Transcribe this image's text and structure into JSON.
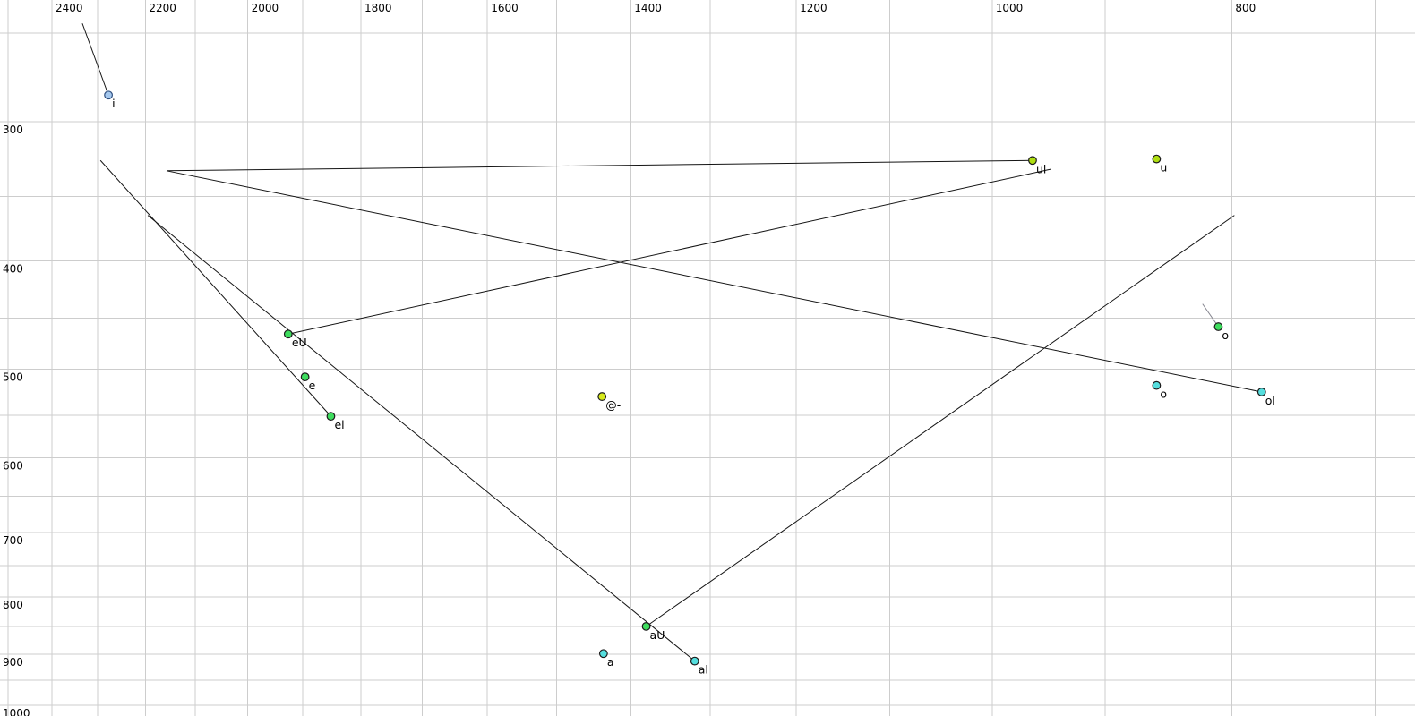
{
  "chart_data": {
    "type": "scatter",
    "title": "",
    "description": "Vowel formant plot: F2 on top horizontal axis (Hz, reversed, log scale), F1 on left vertical axis (Hz, increasing downward, log scale). Labeled vowel tokens with diphthong glide trajectory lines.",
    "x_axis": {
      "unit": "Hz",
      "scale": "log",
      "reversed": true,
      "labeled_ticks": [
        2400,
        2200,
        2000,
        1800,
        1600,
        1400,
        1200,
        1000,
        800
      ],
      "gridline_values": [
        2500,
        2400,
        2300,
        2200,
        2100,
        2000,
        1900,
        1800,
        1700,
        1600,
        1500,
        1400,
        1300,
        1200,
        1100,
        1000,
        900,
        800,
        700
      ]
    },
    "y_axis": {
      "unit": "Hz",
      "scale": "log",
      "labeled_ticks": [
        300,
        400,
        500,
        600,
        700,
        800,
        900,
        1000
      ],
      "gridline_values": [
        250,
        300,
        350,
        400,
        450,
        500,
        550,
        600,
        650,
        700,
        750,
        800,
        850,
        900,
        950,
        1000
      ]
    },
    "palette": {
      "blue": {
        "fill": "#a5c8ee",
        "stroke": "#2f4f7f"
      },
      "green": {
        "fill": "#3edd5e",
        "stroke": "#1a1a1a"
      },
      "cyan": {
        "fill": "#55dede",
        "stroke": "#1a1a1a"
      },
      "chartreuse": {
        "fill": "#aede11",
        "stroke": "#1a1a1a"
      },
      "yellow": {
        "fill": "#d7ea1c",
        "stroke": "#1a1a1a"
      }
    },
    "line_colors": {
      "default": "#141414",
      "grey": "#85858f"
    },
    "label_colors": {
      "default": "#000000",
      "grey": "#8b8b99"
    },
    "points": [
      {
        "id": "i",
        "label": "i",
        "f2": 2277,
        "f1": 284,
        "color": "blue",
        "glide": {
          "f2": 2333,
          "f1": 245
        }
      },
      {
        "id": "ul",
        "label": "ul",
        "f2": 963,
        "f1": 325,
        "color": "chartreuse",
        "glide": {
          "f2": 2157,
          "f1": 332
        }
      },
      {
        "id": "u",
        "label": "u",
        "f2": 858,
        "f1": 324,
        "color": "chartreuse"
      },
      {
        "id": "eU",
        "label": "eU",
        "f2": 1926,
        "f1": 465,
        "color": "green",
        "glide": {
          "f2": 947,
          "f1": 331
        }
      },
      {
        "id": "e",
        "label": "e",
        "f2": 1896,
        "f1": 508,
        "color": "green"
      },
      {
        "id": "el",
        "label": "el",
        "f2": 1851,
        "f1": 551,
        "color": "green",
        "glide": {
          "f2": 2294,
          "f1": 325
        }
      },
      {
        "id": "schwa",
        "label": "@-",
        "f2": 1438,
        "f1": 529,
        "color": "yellow"
      },
      {
        "id": "o-grey",
        "label": "o",
        "f2": 810,
        "f1": 458,
        "color": "green",
        "label_color": "grey",
        "line_color": "grey",
        "glide": {
          "f2": 822,
          "f1": 437
        }
      },
      {
        "id": "o",
        "label": "o",
        "f2": 858,
        "f1": 517,
        "color": "cyan"
      },
      {
        "id": "ol",
        "label": "ol",
        "f2": 778,
        "f1": 524,
        "color": "cyan",
        "glide": {
          "f2": 2157,
          "f1": 332
        }
      },
      {
        "id": "aU",
        "label": "aU",
        "f2": 1380,
        "f1": 850,
        "color": "green",
        "glide": {
          "f2": 798,
          "f1": 364
        }
      },
      {
        "id": "a",
        "label": "a",
        "f2": 1436,
        "f1": 899,
        "color": "cyan"
      },
      {
        "id": "al",
        "label": "al",
        "f2": 1319,
        "f1": 913,
        "color": "cyan",
        "glide": {
          "f2": 2195,
          "f1": 364
        }
      }
    ],
    "grid_color": "#cdcdcd",
    "background_color": "#ffffff"
  }
}
